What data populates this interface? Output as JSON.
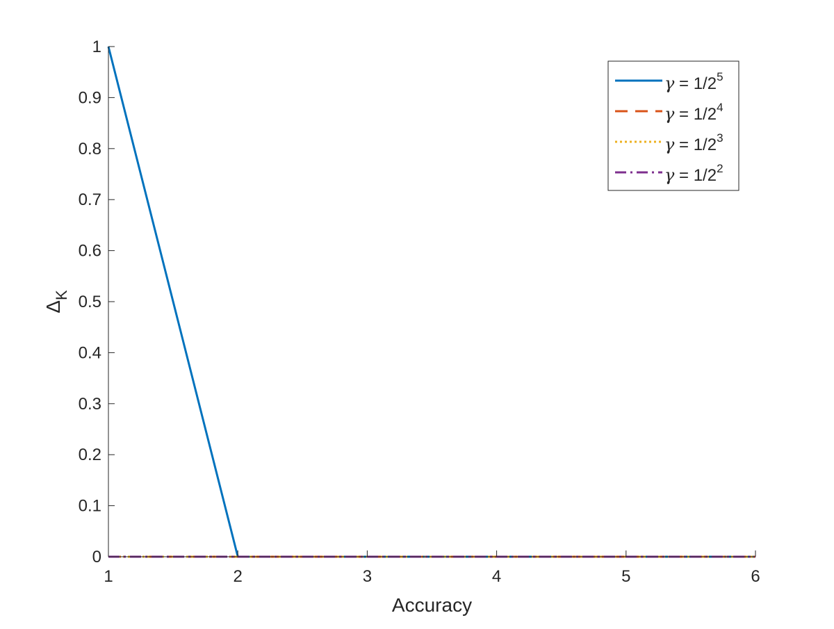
{
  "chart_data": {
    "type": "line",
    "title": "",
    "xlabel": "Accuracy",
    "ylabel": {
      "base": "Δ",
      "sub": "K"
    },
    "xlim": [
      1,
      6
    ],
    "ylim": [
      0,
      1
    ],
    "xticks": [
      "1",
      "2",
      "3",
      "4",
      "5",
      "6"
    ],
    "yticks": [
      "0",
      "0.1",
      "0.2",
      "0.3",
      "0.4",
      "0.5",
      "0.6",
      "0.7",
      "0.8",
      "0.9",
      "1"
    ],
    "grid": false,
    "legend_position": "top-right",
    "x": [
      1,
      2,
      3,
      4,
      5,
      6
    ],
    "series": [
      {
        "name": {
          "symbol": "γ",
          "text": " = 1/2",
          "sup": "5"
        },
        "values": [
          1,
          0,
          0,
          0,
          0,
          0
        ],
        "color": "#0072BD",
        "style": "solid"
      },
      {
        "name": {
          "symbol": "γ",
          "text": " = 1/2",
          "sup": "4"
        },
        "values": [
          0,
          0,
          0,
          0,
          0,
          0
        ],
        "color": "#D95319",
        "style": "dashed"
      },
      {
        "name": {
          "symbol": "γ",
          "text": " = 1/2",
          "sup": "3"
        },
        "values": [
          0,
          0,
          0,
          0,
          0,
          0
        ],
        "color": "#EDB120",
        "style": "dotted"
      },
      {
        "name": {
          "symbol": "γ",
          "text": " = 1/2",
          "sup": "2"
        },
        "values": [
          0,
          0,
          0,
          0,
          0,
          0
        ],
        "color": "#7E2F8E",
        "style": "dashdot"
      }
    ]
  }
}
